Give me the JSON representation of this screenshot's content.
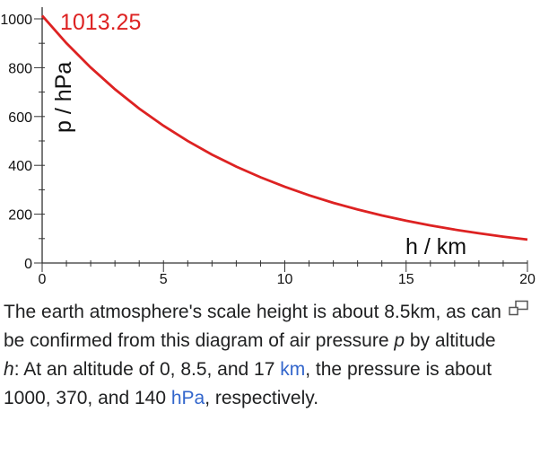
{
  "chart_data": {
    "type": "line",
    "x": [
      0,
      1,
      2,
      3,
      4,
      5,
      6,
      7,
      8,
      9,
      10,
      11,
      12,
      13,
      14,
      15,
      16,
      17,
      18,
      19,
      20
    ],
    "series": [
      {
        "color": "#dd2222",
        "values": [
          1013.25,
          900.7,
          800.6,
          711.6,
          632.5,
          562.2,
          499.8,
          444.2,
          394.9,
          351.0,
          312.0,
          277.3,
          246.5,
          219.1,
          194.8,
          173.1,
          153.9,
          136.8,
          121.6,
          108.1,
          96.1
        ]
      }
    ],
    "annotation": "1013.25",
    "xlabel": "h / km",
    "ylabel": "p / hPa",
    "xlim": [
      0,
      20
    ],
    "ylim": [
      0,
      1000
    ],
    "x_ticks": [
      0,
      5,
      10,
      15,
      20
    ],
    "y_ticks": [
      0,
      200,
      400,
      600,
      800,
      1000
    ],
    "grid": false,
    "legend": "none"
  },
  "caption": {
    "part1": "The earth atmosphere's scale height is about 8.5km, as can be confirmed from this diagram of air pressure ",
    "var_p": "p",
    "part2": " by altitude ",
    "var_h": "h",
    "part3": ": At an altitude of 0, 8.5, and 17 ",
    "link_km": "km",
    "part4": ", the pressure is about 1000, 370, and 140 ",
    "link_hpa": "hPa",
    "part5": ", respectively."
  },
  "icons": {
    "enlarge": "magnify-icon"
  }
}
